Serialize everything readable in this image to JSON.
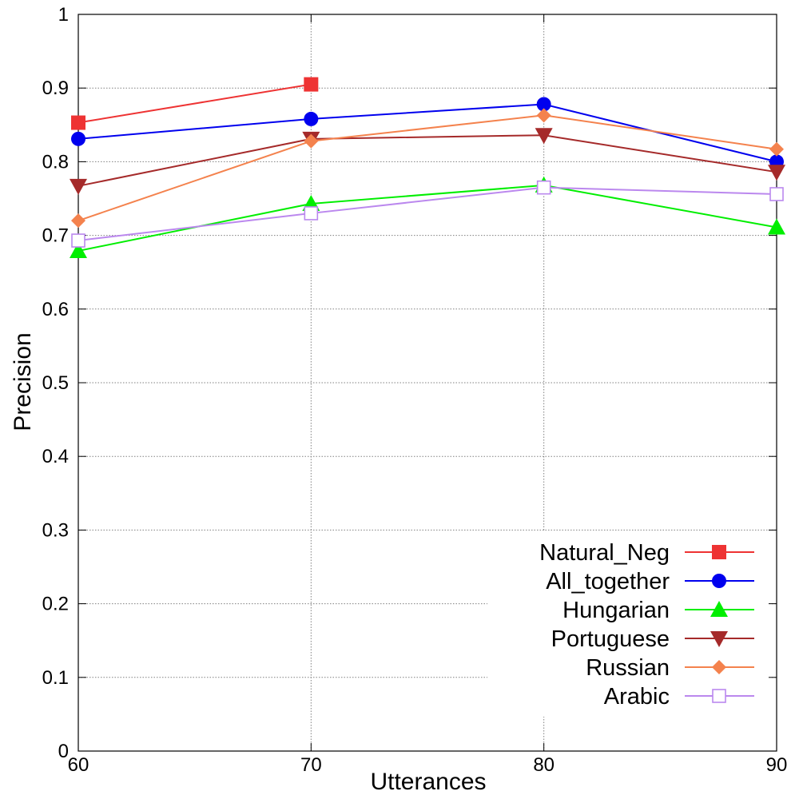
{
  "chart_data": {
    "type": "line",
    "xlabel": "Utterances",
    "ylabel": "Precision",
    "xlim": [
      60,
      90
    ],
    "ylim": [
      0,
      1
    ],
    "x_ticks": [
      "60",
      "70",
      "80",
      "90"
    ],
    "y_ticks": [
      "0",
      "0.1",
      "0.2",
      "0.3",
      "0.4",
      "0.5",
      "0.6",
      "0.7",
      "0.8",
      "0.9",
      "1"
    ],
    "grid": true,
    "legend_position": "bottom-right",
    "series": [
      {
        "name": "Natural_Neg",
        "color": "#ee3333",
        "marker": "square-filled",
        "x": [
          60,
          70
        ],
        "values": [
          0.853,
          0.905
        ]
      },
      {
        "name": "All_together",
        "color": "#0000ee",
        "marker": "circle-filled",
        "x": [
          60,
          70,
          80,
          90
        ],
        "values": [
          0.831,
          0.858,
          0.878,
          0.8
        ]
      },
      {
        "name": "Hungarian",
        "color": "#00ee00",
        "marker": "triangle-up-filled",
        "x": [
          60,
          70,
          80,
          90
        ],
        "values": [
          0.679,
          0.743,
          0.768,
          0.711
        ]
      },
      {
        "name": "Portuguese",
        "color": "#a52a2a",
        "marker": "triangle-down-filled",
        "x": [
          60,
          70,
          80,
          90
        ],
        "values": [
          0.767,
          0.831,
          0.836,
          0.786
        ]
      },
      {
        "name": "Russian",
        "color": "#f4824d",
        "marker": "diamond-filled",
        "x": [
          60,
          70,
          80,
          90
        ],
        "values": [
          0.72,
          0.828,
          0.863,
          0.817
        ]
      },
      {
        "name": "Arabic",
        "color": "#bb88ee",
        "marker": "square-open",
        "x": [
          60,
          70,
          80,
          90
        ],
        "values": [
          0.693,
          0.73,
          0.765,
          0.756
        ]
      }
    ]
  }
}
